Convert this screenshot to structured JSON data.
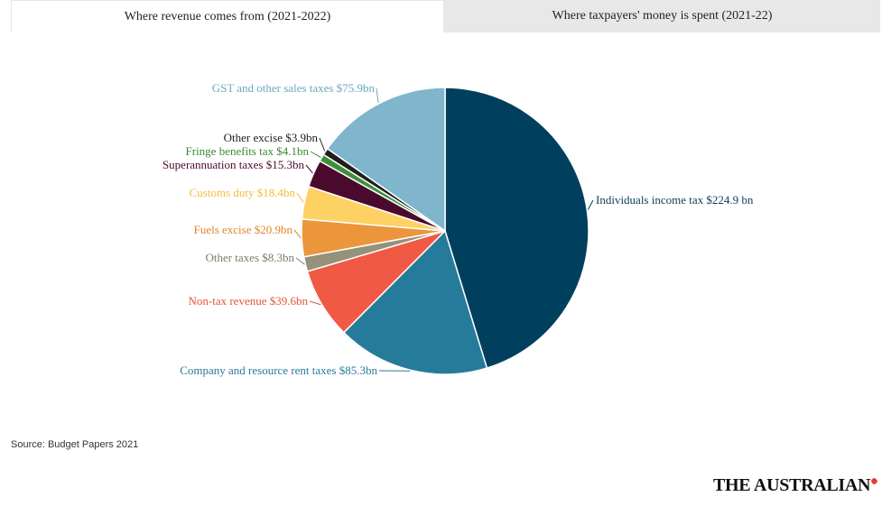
{
  "tabs": [
    {
      "label": "Where revenue comes from (2021-2022)",
      "active": true
    },
    {
      "label": "Where taxpayers' money is spent (2021-22)",
      "active": false
    }
  ],
  "chart_data": {
    "type": "pie",
    "unit": "$bn",
    "start_angle": "12 o'clock",
    "direction": "clockwise",
    "slices": [
      {
        "name": "Individuals income tax",
        "value": 224.9,
        "label": "Individuals income tax $224.9 bn",
        "color": "#00405e",
        "label_color": "#0b3d5a"
      },
      {
        "name": "Company and resource rent taxes",
        "value": 85.3,
        "label": "Company and resource rent taxes $85.3bn",
        "color": "#267b9b",
        "label_color": "#2b7a99"
      },
      {
        "name": "Non-tax revenue",
        "value": 39.6,
        "label": "Non-tax revenue $39.6bn",
        "color": "#f05a44",
        "label_color": "#e55339"
      },
      {
        "name": "Other taxes",
        "value": 8.3,
        "label": "Other taxes $8.3bn",
        "color": "#96917a",
        "label_color": "#7f7b68"
      },
      {
        "name": "Fuels excise",
        "value": 20.9,
        "label": "Fuels excise $20.9bn",
        "color": "#ec963b",
        "label_color": "#e0862a"
      },
      {
        "name": "Customs duty",
        "value": 18.4,
        "label": "Customs duty $18.4bn",
        "color": "#fdd163",
        "label_color": "#f2bd3a"
      },
      {
        "name": "Superannuation taxes",
        "value": 15.3,
        "label": "Superannuation taxes $15.3bn",
        "color": "#4a0a2e",
        "label_color": "#4a0a2e"
      },
      {
        "name": "Fringe benefits tax",
        "value": 4.1,
        "label": "Fringe benefits tax $4.1bn",
        "color": "#3f8f3a",
        "label_color": "#3a8a30"
      },
      {
        "name": "Other excise",
        "value": 3.9,
        "label": "Other excise $3.9bn",
        "color": "#1f1f1f",
        "label_color": "#222222"
      },
      {
        "name": "GST and other sales taxes",
        "value": 75.9,
        "label": "GST and other sales taxes $75.9bn",
        "color": "#7fb6cc",
        "label_color": "#6aa9c1"
      }
    ]
  },
  "source": "Source: Budget Papers 2021",
  "brand": {
    "name": "THE AUSTRALIAN",
    "accent_color": "#e53d2f"
  }
}
